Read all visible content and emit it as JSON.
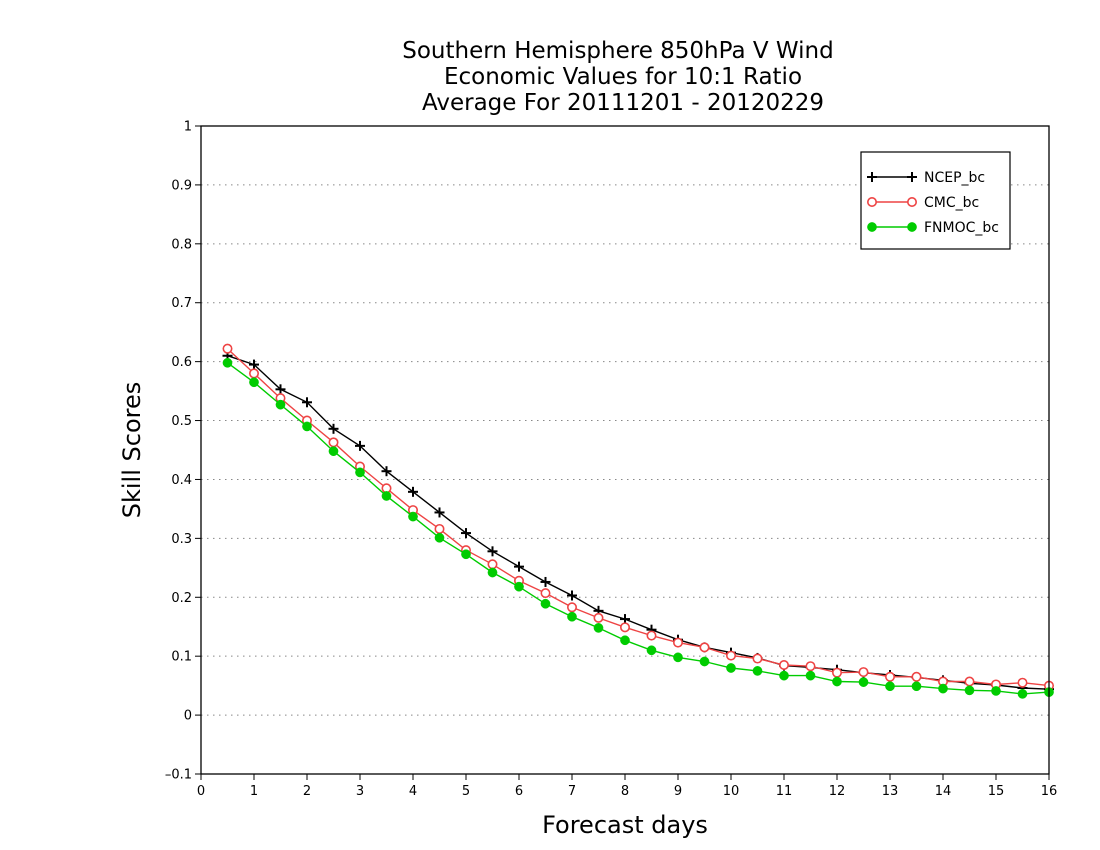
{
  "chart_data": {
    "type": "line",
    "title_lines": [
      "Southern Hemisphere 850hPa V Wind",
      "Economic Values for 10:1 Ratio",
      "Average For 20111201 - 20120229"
    ],
    "xlabel": "Forecast days",
    "ylabel": "Skill Scores",
    "xlim": [
      0,
      16
    ],
    "ylim": [
      -0.1,
      1
    ],
    "xticks": [
      0,
      1,
      2,
      3,
      4,
      5,
      6,
      7,
      8,
      9,
      10,
      11,
      12,
      13,
      14,
      15,
      16
    ],
    "yticks": [
      -0.1,
      0,
      0.1,
      0.2,
      0.3,
      0.4,
      0.5,
      0.6,
      0.7,
      0.8,
      0.9,
      1
    ],
    "ytick_labels": [
      "–0.1",
      "0",
      "0.1",
      "0.2",
      "0.3",
      "0.4",
      "0.5",
      "0.6",
      "0.7",
      "0.8",
      "0.9",
      "1"
    ],
    "grid": "horizontal-dotted",
    "legend_position": "top-right",
    "x": [
      0.5,
      1,
      1.5,
      2,
      2.5,
      3,
      3.5,
      4,
      4.5,
      5,
      5.5,
      6,
      6.5,
      7,
      7.5,
      8,
      8.5,
      9,
      9.5,
      10,
      10.5,
      11,
      11.5,
      12,
      12.5,
      13,
      13.5,
      14,
      14.5,
      15,
      15.5,
      16
    ],
    "series": [
      {
        "name": "NCEP_bc",
        "color": "#000000",
        "marker": "plus",
        "values": [
          0.61,
          0.595,
          0.553,
          0.531,
          0.486,
          0.457,
          0.414,
          0.379,
          0.344,
          0.309,
          0.278,
          0.252,
          0.226,
          0.203,
          0.177,
          0.163,
          0.145,
          0.128,
          0.115,
          0.106,
          0.097,
          0.084,
          0.081,
          0.077,
          0.072,
          0.068,
          0.064,
          0.059,
          0.054,
          0.051,
          0.046,
          0.044
        ]
      },
      {
        "name": "CMC_bc",
        "color": "#ee4444",
        "marker": "open-circle",
        "values": [
          0.622,
          0.58,
          0.538,
          0.5,
          0.463,
          0.422,
          0.385,
          0.348,
          0.316,
          0.28,
          0.256,
          0.228,
          0.207,
          0.183,
          0.165,
          0.149,
          0.135,
          0.123,
          0.115,
          0.101,
          0.096,
          0.085,
          0.083,
          0.072,
          0.073,
          0.065,
          0.065,
          0.057,
          0.057,
          0.052,
          0.055,
          0.05
        ]
      },
      {
        "name": "FNMOC_bc",
        "color": "#00cc00",
        "marker": "filled-circle",
        "values": [
          0.598,
          0.565,
          0.527,
          0.49,
          0.448,
          0.412,
          0.372,
          0.337,
          0.301,
          0.273,
          0.242,
          0.218,
          0.189,
          0.167,
          0.148,
          0.127,
          0.11,
          0.098,
          0.091,
          0.08,
          0.075,
          0.067,
          0.067,
          0.057,
          0.056,
          0.049,
          0.049,
          0.045,
          0.042,
          0.041,
          0.036,
          0.039
        ]
      }
    ]
  }
}
